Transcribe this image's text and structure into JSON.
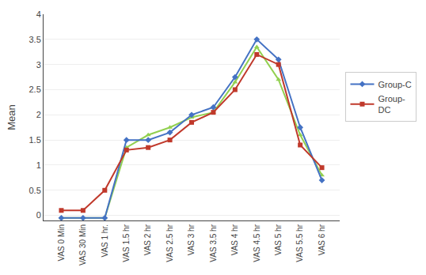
{
  "chart_data": {
    "type": "line",
    "ylabel": "Mean",
    "categories": [
      "VAS 0 Min",
      "VAS 30 Min",
      "VAS 1 hr.",
      "VAS 1.5 hr",
      "VAS 2 hr",
      "VAS 2.5 hr",
      "VAS 3 hr",
      "VAS 3.5 hr",
      "VAS 4 hr",
      "VAS 4.5 hr",
      "VAS 5 hr",
      "VAS 5.5 hr",
      "VAS 6 hr"
    ],
    "series": [
      {
        "color": "#92D050",
        "marker": "triangle-up",
        "values": [
          -0.05,
          -0.05,
          -0.05,
          1.35,
          1.6,
          1.75,
          1.95,
          2.05,
          2.65,
          3.35,
          2.7,
          1.6,
          0.8
        ]
      },
      {
        "name": "Group-C",
        "color": "#4472C4",
        "marker": "diamond",
        "values": [
          -0.05,
          -0.05,
          -0.05,
          1.5,
          1.5,
          1.65,
          2.0,
          2.15,
          2.75,
          3.5,
          3.1,
          1.75,
          0.7
        ]
      },
      {
        "name": "Group-\nDC",
        "color": "#C0392B",
        "marker": "square",
        "values": [
          0.1,
          0.1,
          0.5,
          1.3,
          1.35,
          1.5,
          1.85,
          2.05,
          2.5,
          3.2,
          3.0,
          1.4,
          0.95
        ]
      }
    ],
    "ylim": [
      -0.1,
      4.0
    ],
    "yticks": [
      0,
      0.5,
      1.0,
      1.5,
      2.0,
      2.5,
      3.0,
      3.5,
      4.0
    ],
    "grid": true,
    "legend": "right"
  }
}
